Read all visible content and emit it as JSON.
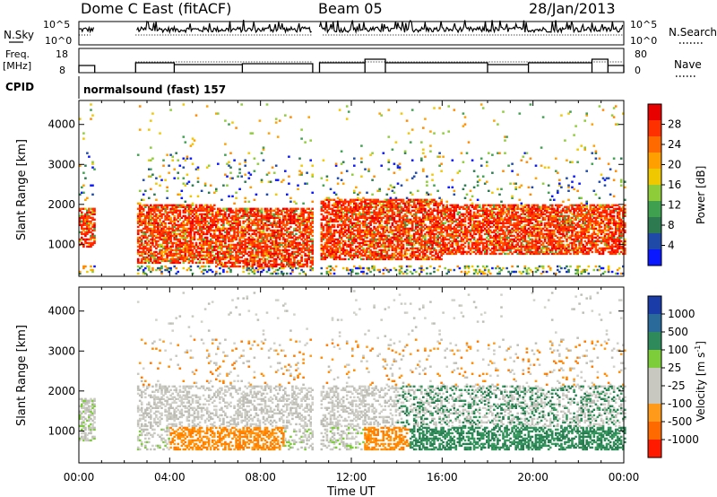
{
  "header": {
    "station": "Dome C East (fitACF)",
    "beam": "Beam 05",
    "date": "28/Jan/2013"
  },
  "strips": {
    "nsky_label": "N.Sky",
    "nsky_ticks": [
      "10^5",
      "10^0"
    ],
    "nsearch_label": "N.Search",
    "nsearch_ticks": [
      "10^5",
      "10^0"
    ],
    "freq_label_line1": "Freq.",
    "freq_label_line2": "[MHz]",
    "freq_ticks": [
      "18",
      "8"
    ],
    "nave_label": "Nave",
    "nave_ticks": [
      "80",
      "0"
    ],
    "cpid_label": "CPID",
    "cpid_text": "normalsound (fast) 157"
  },
  "chart_data": [
    {
      "type": "heatmap",
      "panel": "power",
      "ylabel": "Slant Range [km]",
      "yticks": [
        "4000",
        "3000",
        "2000",
        "1000"
      ],
      "ylim": [
        200,
        4600
      ],
      "x_ticks": [
        "00:00",
        "04:00",
        "08:00",
        "12:00",
        "16:00",
        "20:00",
        "00:00"
      ],
      "colorbar": {
        "label": "Power [dB]",
        "ticks": [
          "28",
          "24",
          "20",
          "16",
          "12",
          "8",
          "4"
        ],
        "colors": [
          "#e80000",
          "#ff3000",
          "#ff6a00",
          "#ffa000",
          "#f0c800",
          "#8fcc3a",
          "#3fa050",
          "#2e7a50",
          "#1f4aa8",
          "#0a18ff"
        ]
      },
      "description_blobs": [
        {
          "t0": 0.0,
          "t1": 0.7,
          "r0": 900,
          "r1": 1900,
          "color": "#ff2a00"
        },
        {
          "t0": 2.5,
          "t1": 10.3,
          "r0": 400,
          "r1": 2100,
          "color": "#ff3a00"
        },
        {
          "t0": 10.6,
          "t1": 24.0,
          "r0": 500,
          "r1": 2200,
          "color": "#ff3000"
        }
      ]
    },
    {
      "type": "heatmap",
      "panel": "velocity",
      "ylabel": "Slant Range [km]",
      "yticks": [
        "4000",
        "3000",
        "2000",
        "1000"
      ],
      "ylim": [
        200,
        4600
      ],
      "xlabel": "Time UT",
      "x_ticks": [
        "00:00",
        "04:00",
        "08:00",
        "12:00",
        "16:00",
        "20:00",
        "00:00"
      ],
      "colorbar": {
        "label": "Velocity [m s",
        "label_sup": "-1",
        "label_end": "]",
        "ticks": [
          "1000",
          "500",
          "100",
          "25",
          "-25",
          "-100",
          "-500",
          "-1000"
        ],
        "colors": [
          "#1a3ca8",
          "#2a6a9a",
          "#2e8a5a",
          "#7dcc3a",
          "#c8c8c0",
          "#c8c8c0",
          "#ff9a1a",
          "#ff6a00",
          "#ff1a00"
        ]
      }
    }
  ]
}
